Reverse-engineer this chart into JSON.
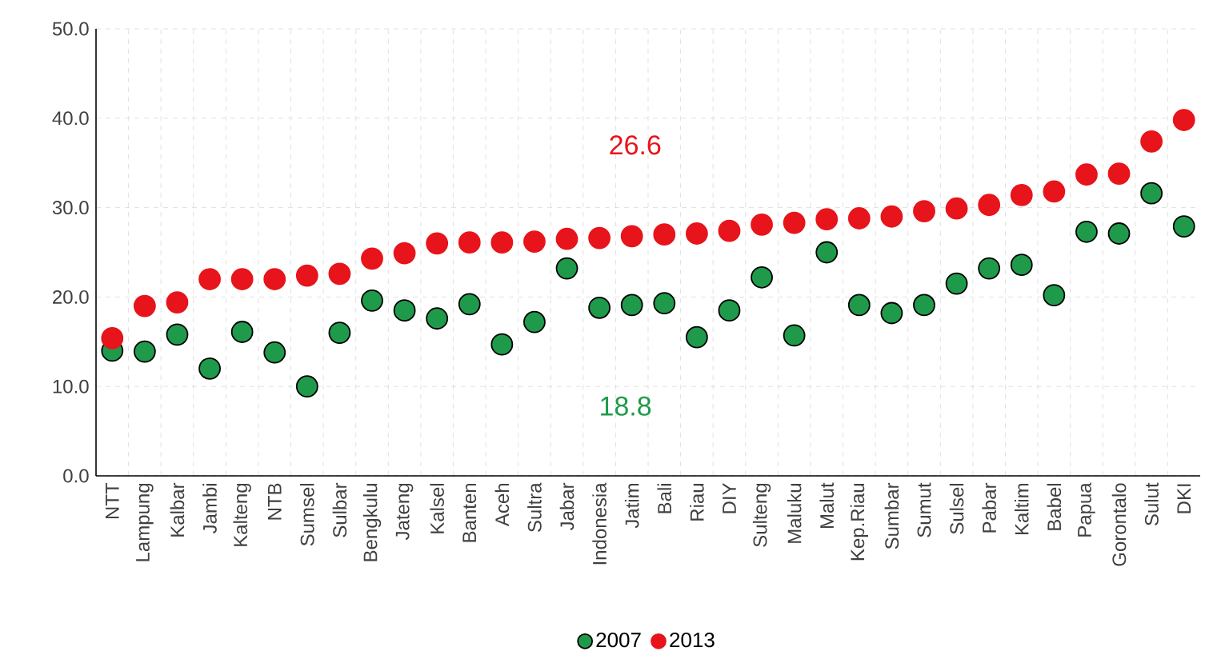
{
  "chart_data": {
    "type": "scatter",
    "categories": [
      "NTT",
      "Lampung",
      "Kalbar",
      "Jambi",
      "Kalteng",
      "NTB",
      "Sumsel",
      "Sulbar",
      "Bengkulu",
      "Jateng",
      "Kalsel",
      "Banten",
      "Aceh",
      "Sultra",
      "Jabar",
      "Indonesia",
      "Jatim",
      "Bali",
      "Riau",
      "DIY",
      "Sulteng",
      "Maluku",
      "Malut",
      "Kep.Riau",
      "Sumbar",
      "Sumut",
      "Sulsel",
      "Pabar",
      "Kaltim",
      "Babel",
      "Papua",
      "Gorontalo",
      "Sulut",
      "DKI"
    ],
    "series": [
      {
        "name": "2007",
        "color": "#1f9a4b",
        "values": [
          14.0,
          13.9,
          15.8,
          12.0,
          16.1,
          13.8,
          10.0,
          16.0,
          19.6,
          18.5,
          17.6,
          19.2,
          14.7,
          17.2,
          23.2,
          18.8,
          19.1,
          19.3,
          15.5,
          18.5,
          22.2,
          15.7,
          25.0,
          19.1,
          18.2,
          19.1,
          21.5,
          23.2,
          23.6,
          20.2,
          27.3,
          27.1,
          31.6,
          27.9
        ]
      },
      {
        "name": "2013",
        "color": "#e8141b",
        "values": [
          15.4,
          19.0,
          19.4,
          22.0,
          22.0,
          22.0,
          22.4,
          22.6,
          24.3,
          24.9,
          26.0,
          26.1,
          26.1,
          26.2,
          26.5,
          26.6,
          26.8,
          27.0,
          27.1,
          27.4,
          28.1,
          28.3,
          28.7,
          28.8,
          29.0,
          29.6,
          29.9,
          30.3,
          31.4,
          31.8,
          33.7,
          33.8,
          37.4,
          39.8
        ]
      }
    ],
    "ylim": [
      0,
      50
    ],
    "yticks": [
      {
        "value": 0,
        "label": "0.0"
      },
      {
        "value": 10,
        "label": "10.0"
      },
      {
        "value": 20,
        "label": "20.0"
      },
      {
        "value": 30,
        "label": "30.0"
      },
      {
        "value": 40,
        "label": "40.0"
      },
      {
        "value": 50,
        "label": "50.0"
      }
    ],
    "annotations": [
      "26.6",
      "18.8"
    ],
    "grid": true,
    "legend": "bottom"
  }
}
